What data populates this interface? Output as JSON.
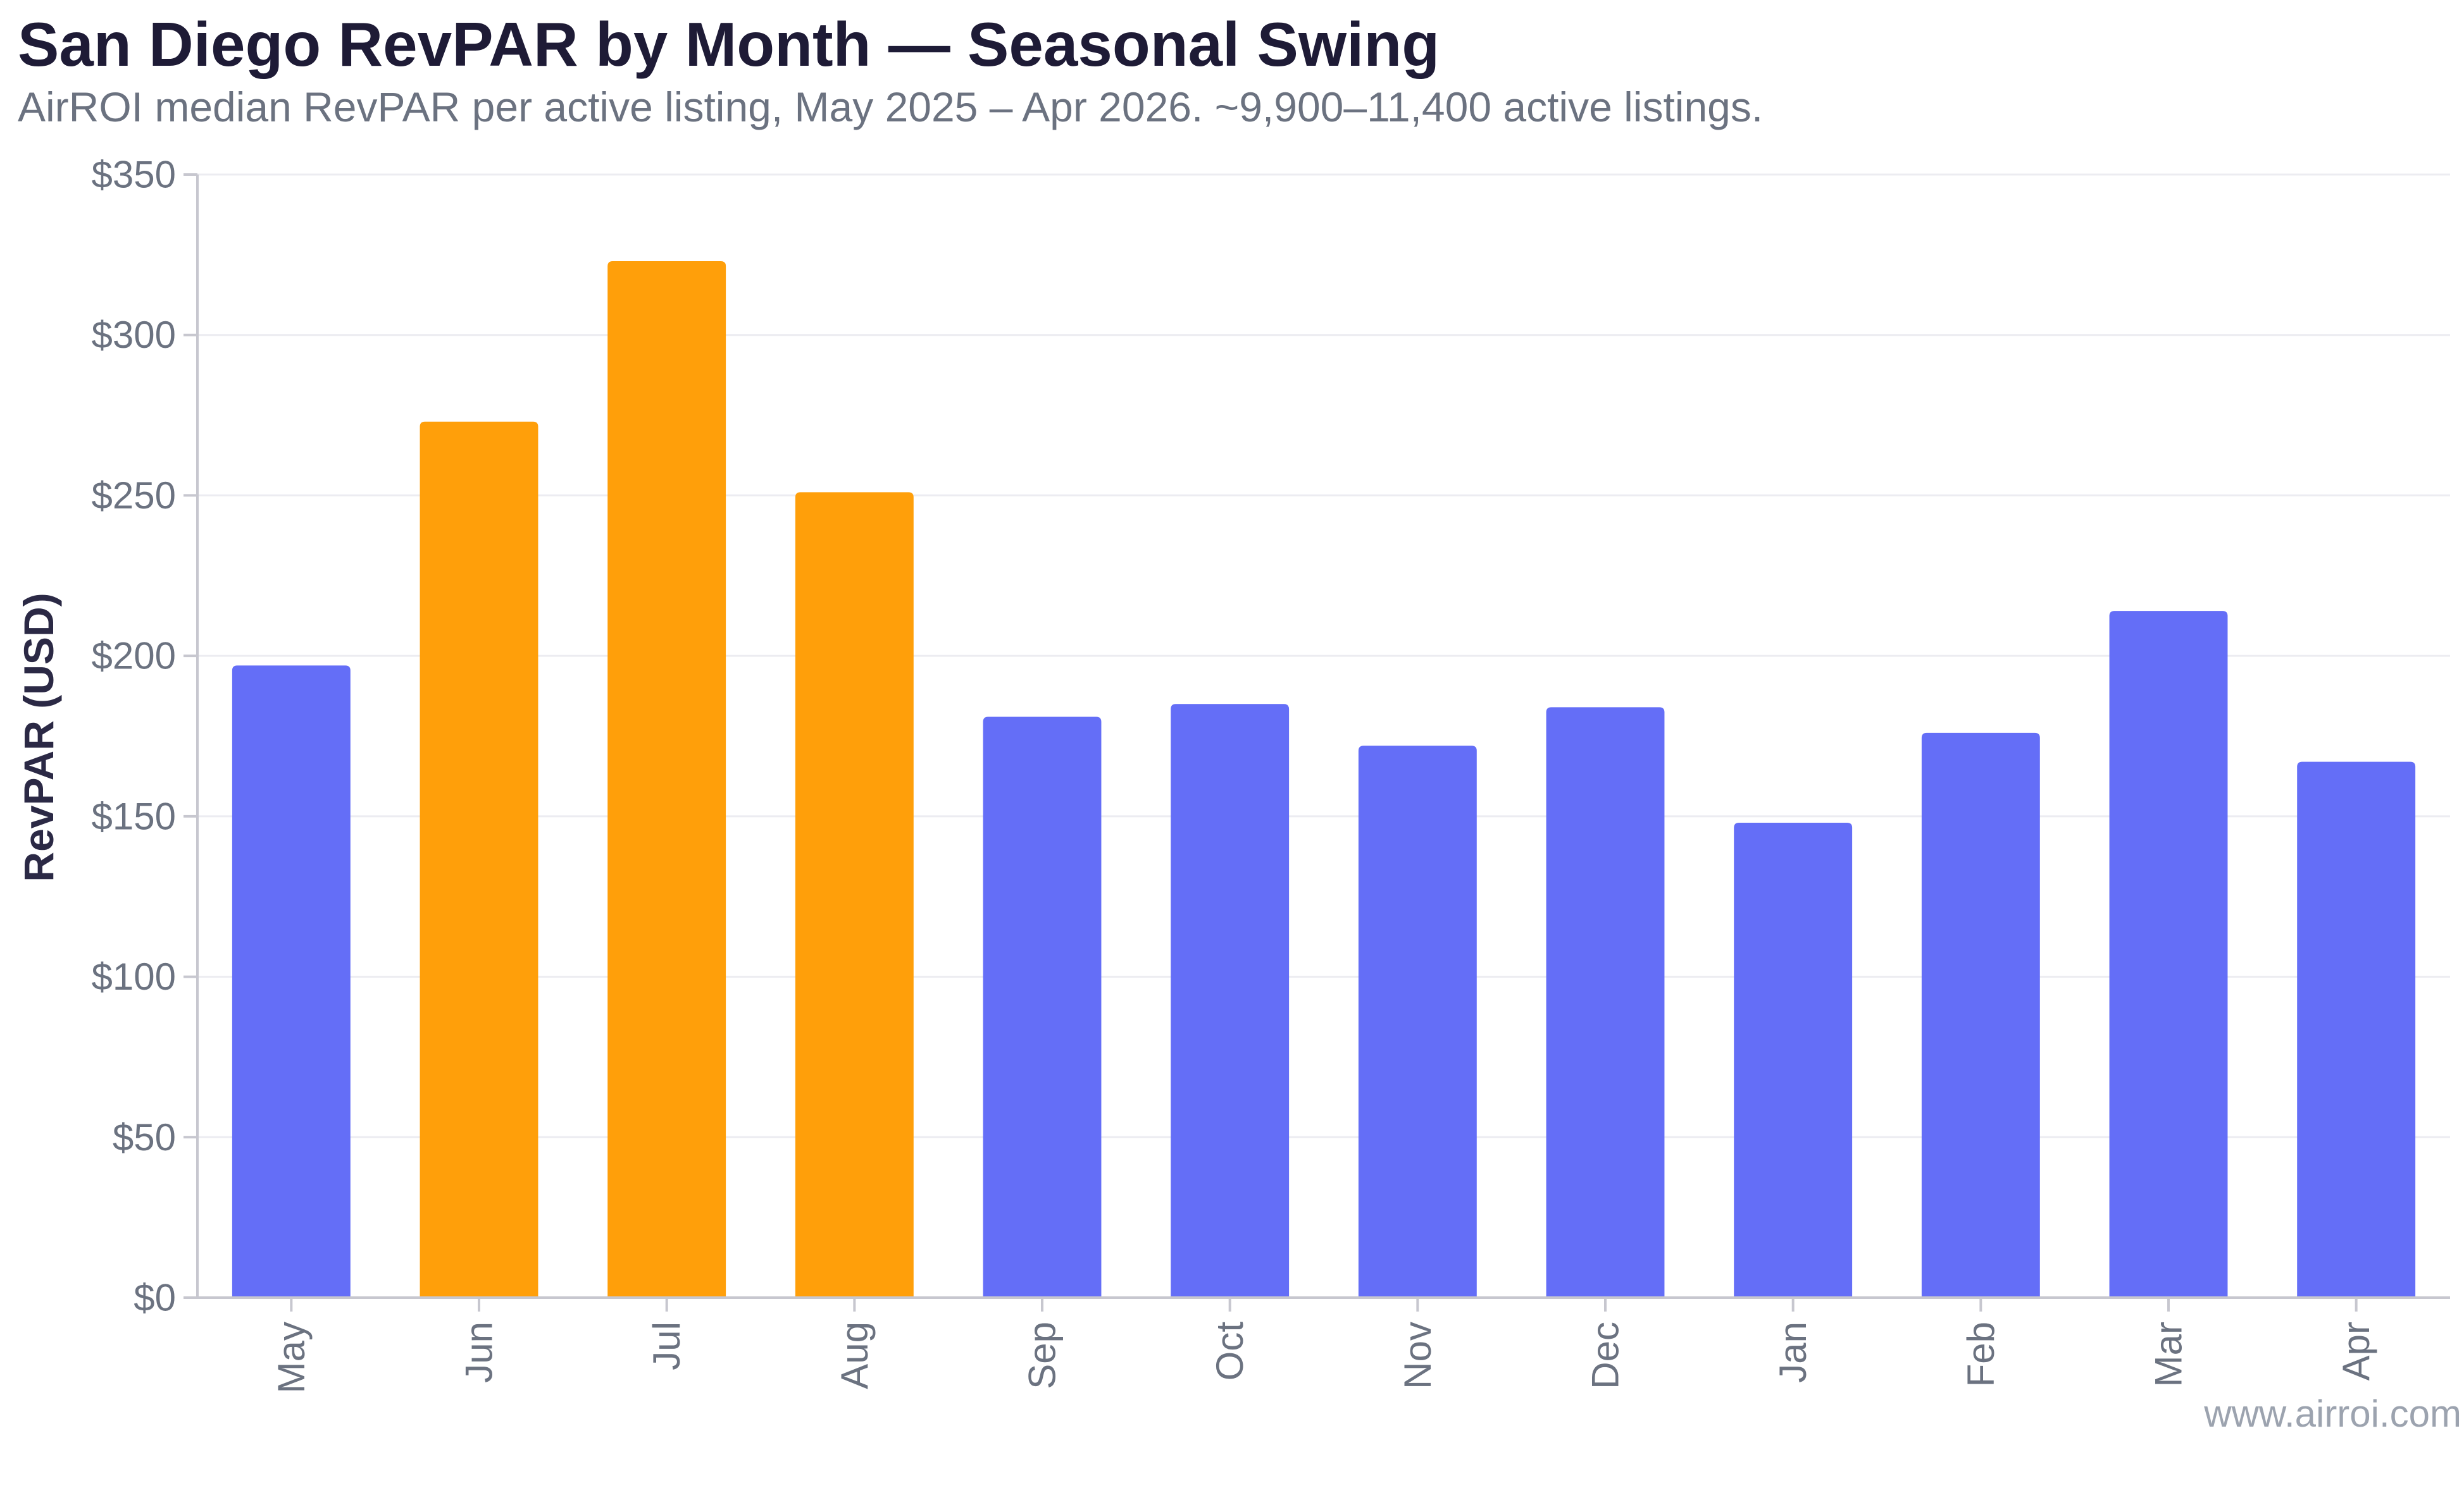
{
  "header": {
    "title": "San Diego RevPAR by Month — Seasonal Swing",
    "subtitle": "AirROI median RevPAR per active listing, May 2025 – Apr 2026. ~9,900–11,400 active listings."
  },
  "footer": {
    "watermark": "www.airroi.com"
  },
  "colors": {
    "default_bar": "#646ef7",
    "highlight_bar": "#ff9f0a",
    "grid": "#ececf1",
    "axis": "#c7c7cf"
  },
  "chart_data": {
    "type": "bar",
    "categories": [
      "May",
      "Jun",
      "Jul",
      "Aug",
      "Sep",
      "Oct",
      "Nov",
      "Dec",
      "Jan",
      "Feb",
      "Mar",
      "Apr"
    ],
    "values": [
      197,
      273,
      323,
      251,
      181,
      185,
      172,
      184,
      148,
      176,
      214,
      167
    ],
    "highlighted": [
      "Jun",
      "Jul",
      "Aug"
    ],
    "ylabel": "RevPAR (USD)",
    "ylim": [
      0,
      350
    ],
    "yticks": [
      0,
      50,
      100,
      150,
      200,
      250,
      300,
      350
    ],
    "ytick_labels": [
      "$0",
      "$50",
      "$100",
      "$150",
      "$200",
      "$250",
      "$300",
      "$350"
    ],
    "grid": true,
    "legend": "none"
  }
}
